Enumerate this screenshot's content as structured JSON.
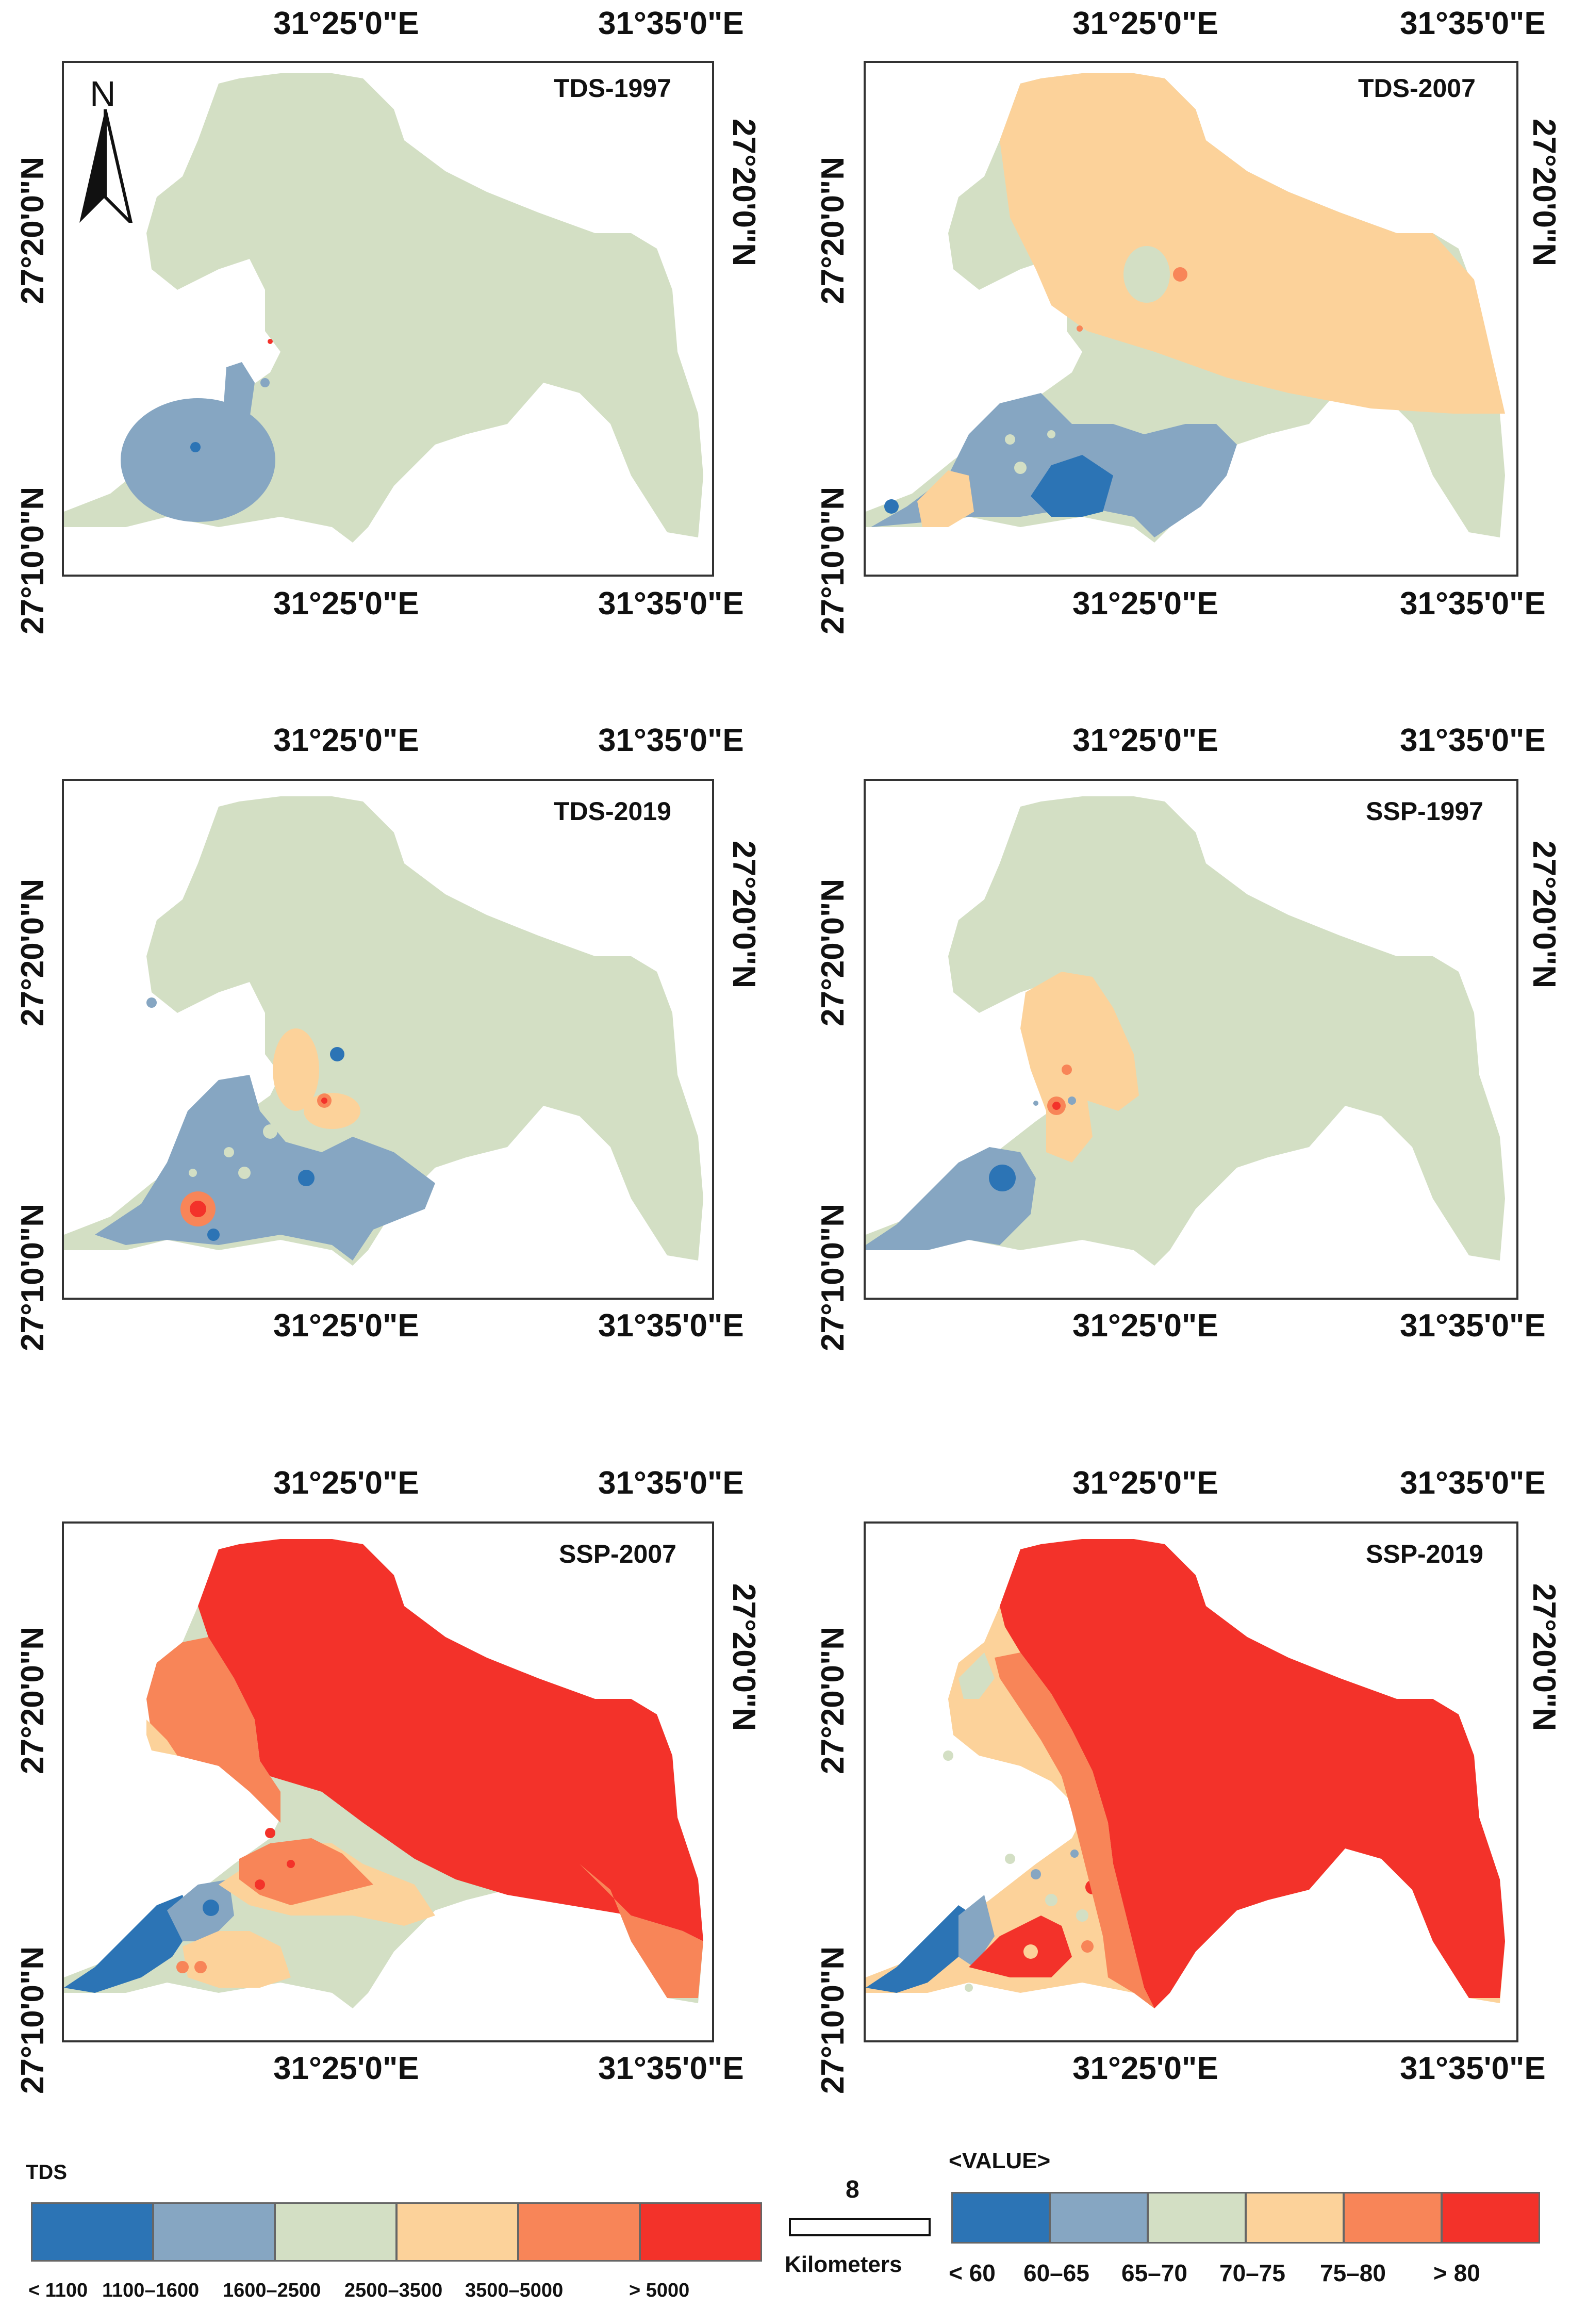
{
  "panels": [
    {
      "title": "TDS-1997",
      "top_lon": [
        "31°25'0\"E",
        "31°35'0\"E"
      ],
      "bottom_lon": [
        "31°25'0\"E",
        "31°35'0\"E"
      ],
      "left_lat": [
        "27°10'0\"N",
        "27°20'0\"N"
      ],
      "right_lat": [
        "27°10'0\"N",
        "27°20'0\"N"
      ],
      "has_north_arrow": true
    },
    {
      "title": "TDS-2007",
      "top_lon": [
        "31°25'0\"E",
        "31°35'0\"E"
      ],
      "bottom_lon": [
        "31°25'0\"E",
        "31°35'0\"E"
      ],
      "left_lat": [
        "27°10'0\"N",
        "27°20'0\"N"
      ],
      "right_lat": [
        "27°10'0\"N",
        "27°20'0\"N"
      ]
    },
    {
      "title": "TDS-2019",
      "top_lon": [
        "31°25'0\"E",
        "31°35'0\"E"
      ],
      "bottom_lon": [
        "31°25'0\"E",
        "31°35'0\"E"
      ],
      "left_lat": [
        "27°10'0\"N",
        "27°20'0\"N"
      ],
      "right_lat": [
        "27°10'0\"N",
        "27°20'0\"N"
      ]
    },
    {
      "title": "SSP-1997",
      "top_lon": [
        "31°25'0\"E",
        "31°35'0\"E"
      ],
      "bottom_lon": [
        "31°25'0\"E",
        "31°35'0\"E"
      ],
      "left_lat": [
        "27°10'0\"N",
        "27°20'0\"N"
      ],
      "right_lat": [
        "27°10'0\"N",
        "27°20'0\"N"
      ]
    },
    {
      "title": "SSP-2007",
      "top_lon": [
        "31°25'0\"E",
        "31°35'0\"E"
      ],
      "bottom_lon": [
        "31°25'0\"E",
        "31°35'0\"E"
      ],
      "left_lat": [
        "27°10'0\"N",
        "27°20'0\"N"
      ],
      "right_lat": [
        "27°10'0\"N",
        "27°20'0\"N"
      ]
    },
    {
      "title": "SSP-2019",
      "top_lon": [
        "31°25'0\"E",
        "31°35'0\"E"
      ],
      "bottom_lon": [
        "31°25'0\"E",
        "31°35'0\"E"
      ],
      "left_lat": [
        "27°10'0\"N",
        "27°20'0\"N"
      ],
      "right_lat": [
        "27°10'0\"N",
        "27°20'0\"N"
      ]
    }
  ],
  "north_label": "N",
  "legend_tds": {
    "title": "TDS",
    "classes": [
      {
        "label": "< 1100",
        "color": "#2c74b5"
      },
      {
        "label": "1100–1600",
        "color": "#86a6c2"
      },
      {
        "label": "1600–2500",
        "color": "#d3dfc4"
      },
      {
        "label": "2500–3500",
        "color": "#fcd29a"
      },
      {
        "label": "3500–5000",
        "color": "#f88558"
      },
      {
        "label": "> 5000",
        "color": "#f3322a"
      }
    ]
  },
  "scale_bar": {
    "value": "8",
    "unit": "Kilometers"
  },
  "legend_ssp": {
    "title": "<VALUE>",
    "classes": [
      {
        "label": "< 60",
        "color": "#2c74b5"
      },
      {
        "label": "60–65",
        "color": "#86a6c2"
      },
      {
        "label": "65–70",
        "color": "#d3dfc4"
      },
      {
        "label": "70–75",
        "color": "#fcd29a"
      },
      {
        "label": "75–80",
        "color": "#f88558"
      },
      {
        "label": "> 80",
        "color": "#f3322a"
      }
    ]
  },
  "colors": {
    "c1": "#2c74b5",
    "c2": "#86a6c2",
    "c3": "#d3dfc4",
    "c4": "#fcd29a",
    "c5": "#f88558",
    "c6": "#f3322a"
  }
}
